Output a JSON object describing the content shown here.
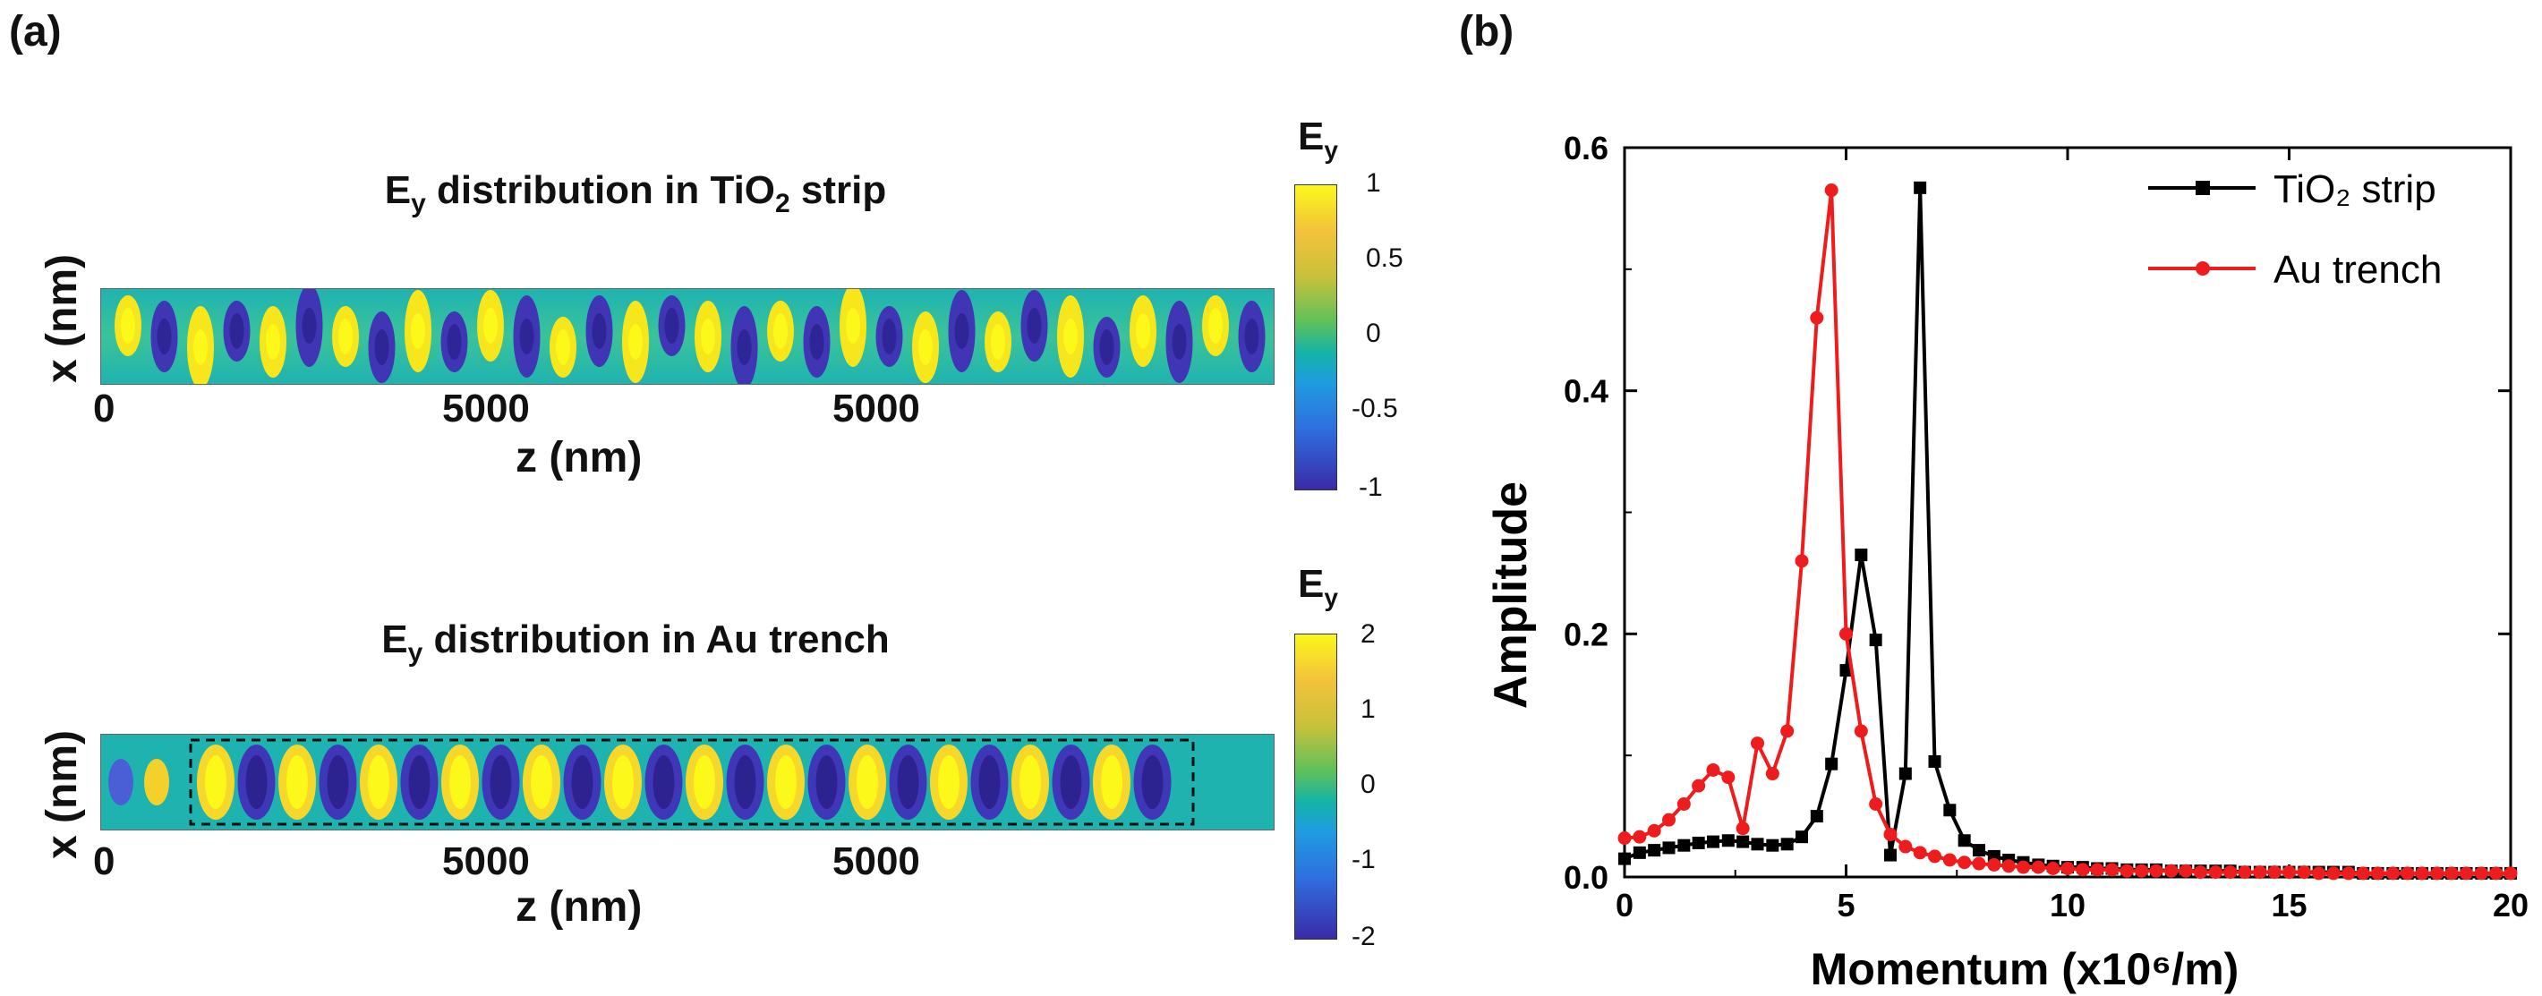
{
  "panel_a": {
    "label": "(a)",
    "map1": {
      "title_pre": "E",
      "title_sub": "y",
      "title_mid": " distribution in TiO",
      "title_sub2": "2",
      "title_post": " strip",
      "xlabel": "z (nm)",
      "ylabel": "x (nm)",
      "ticks": [
        "0",
        "5000",
        "5000"
      ],
      "colorbar_title": "E",
      "colorbar_title_sub": "y",
      "colorbar_ticks": [
        "1",
        "0.5",
        "0",
        "-0.5",
        "-1"
      ]
    },
    "map2": {
      "title_pre": "E",
      "title_sub": "y",
      "title_post": " distribution in Au trench",
      "xlabel": "z (nm)",
      "ylabel": "x (nm)",
      "ticks": [
        "0",
        "5000",
        "5000"
      ],
      "colorbar_title": "E",
      "colorbar_title_sub": "y",
      "colorbar_ticks": [
        "2",
        "1",
        "0",
        "-1",
        "-2"
      ]
    }
  },
  "panel_b": {
    "label": "(b)"
  },
  "chart_data": {
    "type": "line",
    "title": "",
    "xlabel": "Momentum (x10⁶/m)",
    "ylabel": "Amplitude",
    "xlim": [
      0,
      20
    ],
    "ylim": [
      0,
      0.6
    ],
    "xticks": [
      "0",
      "5",
      "10",
      "15",
      "20"
    ],
    "yticks": [
      "0.0",
      "0.2",
      "0.4",
      "0.6"
    ],
    "legend_position": "top-right",
    "series": [
      {
        "name": "TiO₂ strip",
        "color": "#000000",
        "marker": "square",
        "x": [
          0,
          0.34,
          0.67,
          1.0,
          1.34,
          1.67,
          2.0,
          2.34,
          2.67,
          3.0,
          3.34,
          3.67,
          4.0,
          4.34,
          4.67,
          5.0,
          5.34,
          5.67,
          6.0,
          6.34,
          6.67,
          7.0,
          7.34,
          7.67,
          8.0,
          8.34,
          8.67,
          9.0,
          9.34,
          9.67,
          10.0,
          10.34,
          10.67,
          11.0,
          11.34,
          11.67,
          12.0,
          12.34,
          12.67,
          13.0,
          13.34,
          13.67,
          14.0,
          14.34,
          14.67,
          15.0,
          15.34,
          15.67,
          16.0,
          16.34,
          16.67,
          17.0,
          17.34,
          17.67,
          18.0,
          18.34,
          18.67,
          19.0,
          19.34,
          19.67,
          20.0
        ],
        "y": [
          0.015,
          0.02,
          0.022,
          0.024,
          0.026,
          0.028,
          0.029,
          0.03,
          0.029,
          0.027,
          0.026,
          0.027,
          0.033,
          0.05,
          0.093,
          0.17,
          0.265,
          0.195,
          0.018,
          0.085,
          0.567,
          0.095,
          0.055,
          0.03,
          0.022,
          0.017,
          0.014,
          0.012,
          0.01,
          0.009,
          0.008,
          0.008,
          0.007,
          0.007,
          0.006,
          0.006,
          0.006,
          0.005,
          0.005,
          0.005,
          0.005,
          0.005,
          0.004,
          0.004,
          0.004,
          0.004,
          0.004,
          0.004,
          0.004,
          0.004,
          0.003,
          0.003,
          0.003,
          0.003,
          0.003,
          0.003,
          0.003,
          0.003,
          0.003,
          0.003,
          0.003
        ]
      },
      {
        "name": "Au trench",
        "color": "#ee1c1c",
        "marker": "circle",
        "x": [
          0,
          0.34,
          0.67,
          1.0,
          1.34,
          1.67,
          2.0,
          2.34,
          2.67,
          3.0,
          3.34,
          3.67,
          4.0,
          4.34,
          4.67,
          5.0,
          5.34,
          5.67,
          6.0,
          6.34,
          6.67,
          7.0,
          7.34,
          7.67,
          8.0,
          8.34,
          8.67,
          9.0,
          9.34,
          9.67,
          10.0,
          10.34,
          10.67,
          11.0,
          11.34,
          11.67,
          12.0,
          12.34,
          12.67,
          13.0,
          13.34,
          13.67,
          14.0,
          14.34,
          14.67,
          15.0,
          15.34,
          15.67,
          16.0,
          16.34,
          16.67,
          17.0,
          17.34,
          17.67,
          18.0,
          18.34,
          18.67,
          19.0,
          19.34,
          19.67,
          20.0
        ],
        "y": [
          0.032,
          0.033,
          0.038,
          0.047,
          0.06,
          0.075,
          0.088,
          0.082,
          0.04,
          0.11,
          0.085,
          0.12,
          0.26,
          0.46,
          0.565,
          0.2,
          0.12,
          0.06,
          0.035,
          0.025,
          0.02,
          0.017,
          0.014,
          0.012,
          0.011,
          0.01,
          0.009,
          0.008,
          0.008,
          0.007,
          0.007,
          0.006,
          0.006,
          0.006,
          0.005,
          0.005,
          0.005,
          0.005,
          0.005,
          0.004,
          0.004,
          0.004,
          0.004,
          0.004,
          0.004,
          0.004,
          0.004,
          0.003,
          0.003,
          0.003,
          0.003,
          0.003,
          0.003,
          0.003,
          0.003,
          0.003,
          0.003,
          0.003,
          0.003,
          0.003,
          0.003
        ]
      }
    ]
  }
}
